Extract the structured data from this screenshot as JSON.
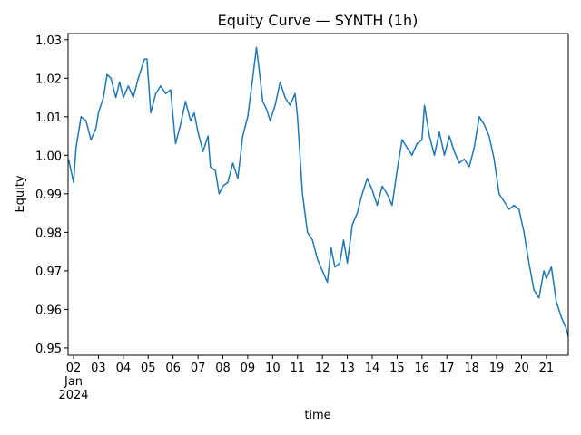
{
  "chart_data": {
    "type": "line",
    "title": "Equity Curve — SYNTH (1h)",
    "xlabel": "time",
    "ylabel": "Equity",
    "x_month_label": "Jan",
    "x_year_label": "2024",
    "color": "#1f77b4",
    "x": [
      1.8,
      2.0,
      2.1,
      2.3,
      2.5,
      2.7,
      2.9,
      3.0,
      3.2,
      3.35,
      3.5,
      3.7,
      3.85,
      4.0,
      4.2,
      4.4,
      4.6,
      4.85,
      4.95,
      5.1,
      5.3,
      5.5,
      5.7,
      5.9,
      6.1,
      6.3,
      6.5,
      6.7,
      6.85,
      7.0,
      7.2,
      7.4,
      7.5,
      7.7,
      7.85,
      8.0,
      8.2,
      8.4,
      8.6,
      8.8,
      9.0,
      9.2,
      9.35,
      9.5,
      9.6,
      9.75,
      9.9,
      10.1,
      10.3,
      10.5,
      10.7,
      10.9,
      11.0,
      11.2,
      11.4,
      11.6,
      11.8,
      12.0,
      12.2,
      12.35,
      12.5,
      12.7,
      12.85,
      13.0,
      13.2,
      13.4,
      13.6,
      13.8,
      14.0,
      14.2,
      14.4,
      14.6,
      14.8,
      15.0,
      15.2,
      15.4,
      15.6,
      15.8,
      16.0,
      16.1,
      16.3,
      16.5,
      16.7,
      16.9,
      17.1,
      17.3,
      17.5,
      17.7,
      17.9,
      18.1,
      18.3,
      18.5,
      18.7,
      18.9,
      19.1,
      19.3,
      19.5,
      19.7,
      19.9,
      20.1,
      20.3,
      20.5,
      20.7,
      20.9,
      21.0,
      21.2,
      21.4,
      21.6,
      21.8,
      21.88
    ],
    "values": [
      0.999,
      0.993,
      1.002,
      1.01,
      1.009,
      1.004,
      1.007,
      1.011,
      1.015,
      1.021,
      1.02,
      1.015,
      1.019,
      1.015,
      1.018,
      1.015,
      1.02,
      1.025,
      1.025,
      1.011,
      1.016,
      1.018,
      1.016,
      1.017,
      1.003,
      1.008,
      1.014,
      1.009,
      1.011,
      1.006,
      1.001,
      1.005,
      0.997,
      0.996,
      0.99,
      0.992,
      0.993,
      0.998,
      0.994,
      1.005,
      1.01,
      1.02,
      1.028,
      1.02,
      1.014,
      1.012,
      1.009,
      1.013,
      1.019,
      1.015,
      1.013,
      1.016,
      1.01,
      0.99,
      0.98,
      0.978,
      0.973,
      0.97,
      0.967,
      0.976,
      0.971,
      0.972,
      0.978,
      0.972,
      0.982,
      0.985,
      0.99,
      0.994,
      0.991,
      0.987,
      0.992,
      0.99,
      0.987,
      0.996,
      1.004,
      1.002,
      1.0,
      1.003,
      1.004,
      1.013,
      1.005,
      1.0,
      1.006,
      1.0,
      1.005,
      1.001,
      0.998,
      0.999,
      0.997,
      1.002,
      1.01,
      1.008,
      1.005,
      0.999,
      0.99,
      0.988,
      0.986,
      0.987,
      0.986,
      0.98,
      0.972,
      0.965,
      0.963,
      0.97,
      0.968,
      0.971,
      0.962,
      0.958,
      0.955,
      0.953
    ],
    "xlim": [
      1.78,
      21.88
    ],
    "ylim": [
      0.9481,
      1.0316
    ],
    "xticks": [
      {
        "value": 2,
        "label": "02"
      },
      {
        "value": 3,
        "label": "03"
      },
      {
        "value": 4,
        "label": "04"
      },
      {
        "value": 5,
        "label": "05"
      },
      {
        "value": 6,
        "label": "06"
      },
      {
        "value": 7,
        "label": "07"
      },
      {
        "value": 8,
        "label": "08"
      },
      {
        "value": 9,
        "label": "09"
      },
      10,
      11,
      12,
      13,
      14,
      15,
      16,
      17,
      18,
      19,
      20,
      21
    ],
    "yticks": [
      0.95,
      0.96,
      0.97,
      0.98,
      0.99,
      {
        "value": 1,
        "label": "1.00"
      },
      1.01,
      1.02,
      1.03
    ]
  }
}
